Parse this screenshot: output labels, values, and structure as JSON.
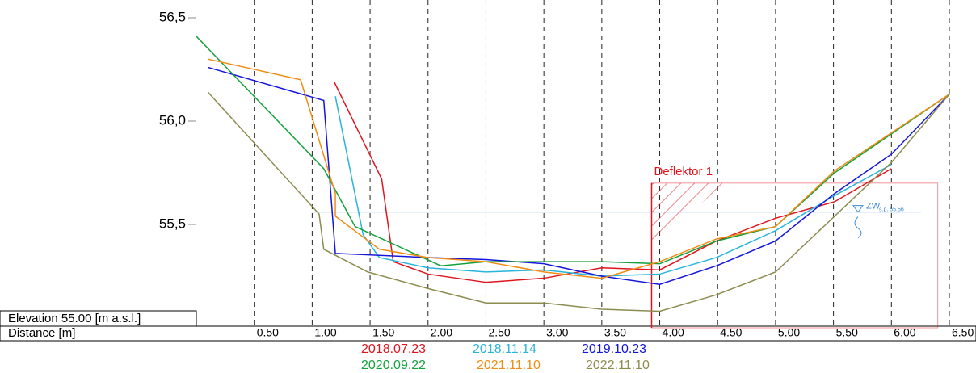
{
  "chart_data": {
    "type": "line",
    "y_axis_label": "Elevation 55.00 [m a.s.l.]",
    "x_axis_label": "Distance [m]",
    "xlim": [
      0,
      6.5
    ],
    "ylim": [
      55,
      56.5
    ],
    "xticks": [
      0.5,
      1,
      1.5,
      2,
      2.5,
      3,
      3.5,
      4,
      4.5,
      5,
      5.5,
      6,
      6.5
    ],
    "xtick_labels": [
      "0.50",
      "1.00",
      "1.50",
      "2.00",
      "2.50",
      "3.00",
      "3.50",
      "4.00",
      "4.50",
      "5.00",
      "5.50",
      "6.00",
      "6.50"
    ],
    "yticks": [
      {
        "value": 55.5,
        "label": "55,5"
      },
      {
        "value": 56,
        "label": "56,0"
      },
      {
        "value": 56.5,
        "label": "56,5"
      }
    ],
    "grid": true,
    "water_level": {
      "label": "ZW",
      "sub_label": "s.p. 55.56",
      "value": 55.56,
      "color": "#3c8cd2"
    },
    "deflector": {
      "label": "Deflektor 1",
      "x": [
        3.93,
        6.4
      ],
      "top": 55.7,
      "color": "#e0141e"
    },
    "series": [
      {
        "name": "2018.07.23",
        "color": "#e0141e",
        "x": [
          1.19,
          1.6,
          1.7,
          2.0,
          2.5,
          3.0,
          3.5,
          4.0,
          4.49,
          5.0,
          5.51,
          6.0
        ],
        "values": [
          56.19,
          55.72,
          55.32,
          55.26,
          55.22,
          55.24,
          55.29,
          55.28,
          55.42,
          55.53,
          55.61,
          55.77
        ]
      },
      {
        "name": "2018.11.14",
        "color": "#28b4dc",
        "x": [
          1.2,
          1.44,
          1.58,
          2.0,
          2.5,
          3.0,
          3.5,
          4.0,
          4.49,
          5.0,
          5.51,
          6.0
        ],
        "values": [
          56.12,
          55.45,
          55.34,
          55.29,
          55.27,
          55.28,
          55.25,
          55.26,
          55.34,
          55.47,
          55.64,
          55.79
        ]
      },
      {
        "name": "2019.10.23",
        "color": "#1414dc",
        "x": [
          0.1,
          1.1,
          1.2,
          2.0,
          2.5,
          3.0,
          3.5,
          4.0,
          4.49,
          5.0,
          5.51,
          6.0,
          6.5
        ],
        "values": [
          56.26,
          56.1,
          55.36,
          55.34,
          55.33,
          55.31,
          55.25,
          55.21,
          55.3,
          55.42,
          55.65,
          55.84,
          56.13
        ]
      },
      {
        "name": "2020.09.22",
        "color": "#14a03c",
        "x": [
          0.0,
          1.1,
          1.37,
          2.11,
          2.5,
          3.0,
          3.5,
          4.0,
          4.49,
          5.0,
          5.51,
          6.5
        ],
        "values": [
          56.41,
          55.77,
          55.49,
          55.3,
          55.32,
          55.32,
          55.32,
          55.31,
          55.42,
          55.49,
          55.75,
          56.13
        ]
      },
      {
        "name": "2021.11.10",
        "color": "#f08c14",
        "x": [
          0.1,
          0.9,
          1.2,
          1.2,
          1.58,
          2.0,
          2.5,
          3.0,
          3.5,
          4.0,
          4.49,
          5.0,
          5.51,
          6.5
        ],
        "values": [
          56.3,
          56.2,
          55.65,
          55.54,
          55.38,
          55.34,
          55.32,
          55.27,
          55.24,
          55.32,
          55.43,
          55.49,
          55.76,
          56.13
        ]
      },
      {
        "name": "2022.11.10",
        "color": "#8c8c50",
        "x": [
          0.1,
          1.06,
          1.1,
          1.48,
          2.0,
          2.5,
          3.0,
          3.5,
          4.0,
          4.49,
          5.0,
          5.51,
          6.0,
          6.5
        ],
        "values": [
          56.14,
          55.55,
          55.38,
          55.27,
          55.19,
          55.12,
          55.12,
          55.09,
          55.08,
          55.16,
          55.27,
          55.54,
          55.8,
          56.13
        ]
      }
    ]
  }
}
